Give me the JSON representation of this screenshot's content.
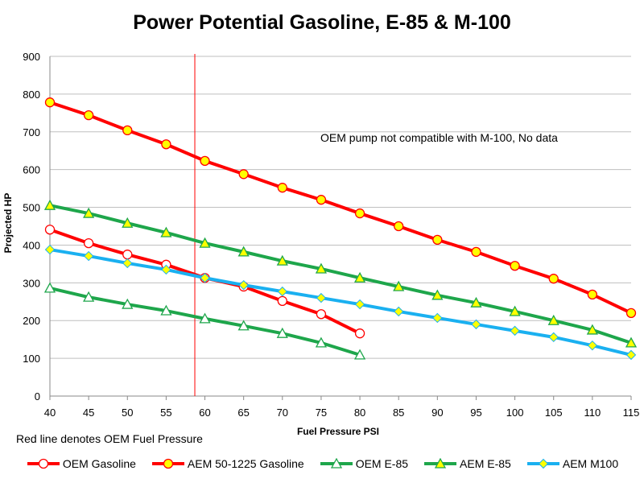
{
  "chart_data": {
    "type": "line",
    "title": "Power Potential Gasoline, E-85 & M-100",
    "xlabel": "Fuel Pressure PSI",
    "ylabel": "Projected HP",
    "xlim": [
      40,
      115
    ],
    "ylim": [
      0,
      900
    ],
    "x_ticks": [
      40,
      45,
      50,
      55,
      60,
      65,
      70,
      75,
      80,
      85,
      90,
      95,
      100,
      105,
      110,
      115
    ],
    "y_ticks": [
      0,
      100,
      200,
      300,
      400,
      500,
      600,
      700,
      800,
      900
    ],
    "grid": true,
    "legend_position": "bottom",
    "reference_line": {
      "x": 58.7,
      "color": "#ff0000"
    },
    "note": "Red line denotes OEM Fuel Pressure",
    "annotation": "OEM pump not compatible with M-100, No data",
    "series": [
      {
        "name": "OEM Gasoline",
        "color": "#ff0000",
        "marker": "circle-open",
        "x": [
          40,
          45,
          50,
          55,
          60,
          65,
          70,
          75,
          80
        ],
        "values": [
          441,
          405,
          375,
          348,
          313,
          290,
          252,
          217,
          166
        ]
      },
      {
        "name": "AEM 50-1225 Gasoline",
        "color": "#ff0000",
        "marker": "circle-yellow",
        "x": [
          40,
          45,
          50,
          55,
          60,
          65,
          70,
          75,
          80,
          85,
          90,
          95,
          100,
          105,
          110,
          115
        ],
        "values": [
          778,
          744,
          704,
          667,
          623,
          588,
          552,
          520,
          484,
          450,
          414,
          382,
          345,
          311,
          269,
          220
        ]
      },
      {
        "name": "OEM E-85",
        "color": "#1ea64b",
        "marker": "triangle-open",
        "x": [
          40,
          45,
          50,
          55,
          60,
          65,
          70,
          75,
          80
        ],
        "values": [
          286,
          262,
          243,
          226,
          205,
          186,
          166,
          141,
          109
        ]
      },
      {
        "name": "AEM E-85",
        "color": "#1ea64b",
        "marker": "triangle-yellow",
        "x": [
          40,
          45,
          50,
          55,
          60,
          65,
          70,
          75,
          80,
          85,
          90,
          95,
          100,
          105,
          110,
          115
        ],
        "values": [
          505,
          484,
          458,
          433,
          405,
          382,
          358,
          337,
          313,
          290,
          267,
          247,
          224,
          200,
          175,
          141
        ]
      },
      {
        "name": "AEM M100",
        "color": "#1ab0f0",
        "marker": "diamond-yellow",
        "x": [
          40,
          45,
          50,
          55,
          60,
          65,
          70,
          75,
          80,
          85,
          90,
          95,
          100,
          105,
          110,
          115
        ],
        "values": [
          388,
          371,
          352,
          335,
          313,
          294,
          277,
          260,
          243,
          224,
          207,
          190,
          173,
          156,
          134,
          109
        ]
      }
    ]
  }
}
